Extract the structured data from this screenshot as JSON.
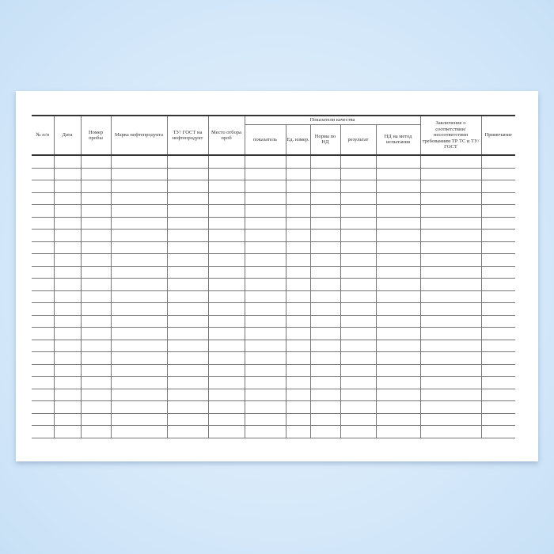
{
  "headers": {
    "num": "№ п/п",
    "date": "Дата",
    "sample_no": "Номер пробы",
    "brand": "Марка нефтепродукта",
    "tu_gost": "ТУ/ ГОСТ на нефтепродукт",
    "place": "Место отбора проб",
    "quality": "Показатели качества",
    "indicator": "показатель",
    "unit": "Ед. измер.",
    "norm": "Норма по НД",
    "result": "результат",
    "method": "НД на метод испытания",
    "conclusion": "Заключение о соответствии/ несоответствии требованиям ТР ТС и ТУ/ ГОСТ",
    "note": "Примечание"
  },
  "row_count": 23
}
